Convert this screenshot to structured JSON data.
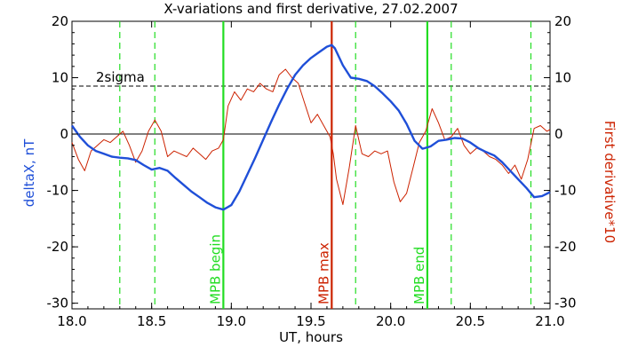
{
  "chart_data": {
    "type": "line",
    "title": "X-variations and first derivative, 27.02.2007",
    "xlabel": "UT, hours",
    "ylabel_left": "deltaX, nT",
    "ylabel_right": "First derivative*10",
    "xlim": [
      18.0,
      21.0
    ],
    "ylim": [
      -31,
      20
    ],
    "grid": false,
    "x_ticks": [
      "18.0",
      "18.5",
      "19.0",
      "19.5",
      "20.0",
      "20.5",
      "21.0"
    ],
    "y_ticks": [
      "-30",
      "-20",
      "-10",
      "0",
      "10",
      "20"
    ],
    "x_tick_values": [
      18.0,
      18.5,
      19.0,
      19.5,
      20.0,
      20.5,
      21.0
    ],
    "y_tick_values": [
      -30,
      -20,
      -10,
      0,
      10,
      20
    ],
    "colors": {
      "deltaX": "#1f4fd8",
      "derivative": "#cc2200",
      "mpb_edges": "#22dd22",
      "mpb_max": "#cc2200",
      "axes": "#000000"
    },
    "threshold": {
      "label": "2sigma",
      "y": 8.5
    },
    "mpb_lines": [
      {
        "label": "MPB begin",
        "x": 18.95,
        "color": "#22dd22"
      },
      {
        "label": "MPB max",
        "x": 19.63,
        "color": "#cc2200"
      },
      {
        "label": "MPB end",
        "x": 20.23,
        "color": "#22dd22"
      }
    ],
    "dashed_markers_x": [
      18.3,
      18.52,
      19.78,
      20.38,
      20.88
    ],
    "series": [
      {
        "axis": "left",
        "x": [
          18.0,
          18.05,
          18.1,
          18.15,
          18.2,
          18.25,
          18.3,
          18.35,
          18.4,
          18.45,
          18.5,
          18.55,
          18.6,
          18.65,
          18.7,
          18.75,
          18.8,
          18.85,
          18.9,
          18.95,
          19.0,
          19.05,
          19.1,
          19.15,
          19.2,
          19.25,
          19.3,
          19.35,
          19.4,
          19.45,
          19.5,
          19.55,
          19.6,
          19.63,
          19.65,
          19.7,
          19.75,
          19.8,
          19.85,
          19.9,
          19.95,
          20.0,
          20.05,
          20.1,
          20.15,
          20.2,
          20.25,
          20.3,
          20.35,
          20.4,
          20.45,
          20.5,
          20.55,
          20.6,
          20.65,
          20.7,
          20.75,
          20.8,
          20.85,
          20.9,
          20.95,
          21.0
        ],
        "values": [
          1.5,
          -0.5,
          -2.0,
          -3.0,
          -3.5,
          -4.0,
          -4.2,
          -4.3,
          -4.6,
          -5.5,
          -6.3,
          -6.0,
          -6.5,
          -7.8,
          -9.0,
          -10.2,
          -11.2,
          -12.2,
          -13.0,
          -13.4,
          -12.6,
          -10.2,
          -7.2,
          -4.2,
          -1.0,
          2.2,
          5.2,
          8.0,
          10.5,
          12.2,
          13.5,
          14.5,
          15.5,
          15.8,
          15.2,
          12.2,
          10.0,
          9.8,
          9.4,
          8.5,
          7.2,
          5.8,
          4.2,
          1.8,
          -1.2,
          -2.6,
          -2.2,
          -1.2,
          -1.0,
          -0.7,
          -0.8,
          -1.5,
          -2.5,
          -3.2,
          -3.8,
          -5.0,
          -6.5,
          -8.0,
          -9.5,
          -11.2,
          -11.0,
          -10.3
        ]
      },
      {
        "axis": "right",
        "x": [
          18.0,
          18.04,
          18.08,
          18.12,
          18.16,
          18.2,
          18.24,
          18.28,
          18.32,
          18.36,
          18.4,
          18.44,
          18.48,
          18.52,
          18.56,
          18.6,
          18.64,
          18.68,
          18.72,
          18.76,
          18.8,
          18.84,
          18.88,
          18.92,
          18.95,
          18.98,
          19.02,
          19.06,
          19.1,
          19.14,
          19.18,
          19.22,
          19.26,
          19.3,
          19.34,
          19.38,
          19.42,
          19.46,
          19.5,
          19.54,
          19.58,
          19.62,
          19.64,
          19.66,
          19.7,
          19.74,
          19.78,
          19.82,
          19.86,
          19.9,
          19.94,
          19.98,
          20.02,
          20.06,
          20.1,
          20.14,
          20.18,
          20.22,
          20.26,
          20.3,
          20.34,
          20.38,
          20.42,
          20.46,
          20.5,
          20.54,
          20.58,
          20.62,
          20.66,
          20.7,
          20.74,
          20.78,
          20.82,
          20.86,
          20.9,
          20.94,
          20.98,
          21.0
        ],
        "values": [
          -1.5,
          -4.5,
          -6.5,
          -3.0,
          -2.0,
          -1.0,
          -1.5,
          -0.5,
          0.5,
          -2.0,
          -5.0,
          -3.0,
          0.5,
          2.5,
          0.5,
          -4.0,
          -3.0,
          -3.5,
          -4.0,
          -2.5,
          -3.5,
          -4.5,
          -3.0,
          -2.5,
          -1.0,
          5.0,
          7.5,
          6.0,
          8.0,
          7.5,
          9.0,
          8.0,
          7.5,
          10.5,
          11.5,
          10.0,
          9.0,
          5.5,
          2.0,
          3.5,
          1.5,
          -0.5,
          -3.5,
          -8.0,
          -12.5,
          -6.0,
          1.5,
          -3.5,
          -4.0,
          -3.0,
          -3.5,
          -3.0,
          -8.5,
          -12.0,
          -10.5,
          -6.0,
          -1.5,
          0.5,
          4.5,
          2.0,
          -1.0,
          -0.5,
          1.0,
          -2.0,
          -3.5,
          -2.5,
          -3.0,
          -4.0,
          -4.5,
          -5.5,
          -7.0,
          -5.5,
          -8.0,
          -4.5,
          1.0,
          1.5,
          0.5,
          0.8
        ]
      }
    ]
  }
}
